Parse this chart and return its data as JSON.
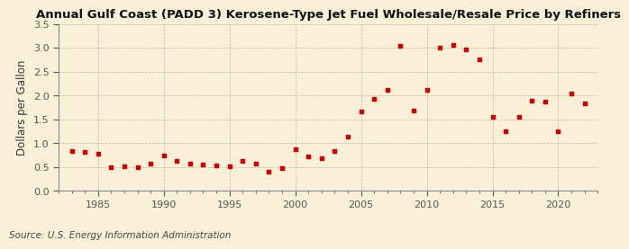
{
  "title": "Annual Gulf Coast (PADD 3) Kerosene-Type Jet Fuel Wholesale/Resale Price by Refiners",
  "ylabel": "Dollars per Gallon",
  "source": "Source: U.S. Energy Information Administration",
  "background_color": "#FAF0D7",
  "marker_color": "#CC0000",
  "years": [
    1983,
    1984,
    1985,
    1986,
    1987,
    1988,
    1989,
    1990,
    1991,
    1992,
    1993,
    1994,
    1995,
    1996,
    1997,
    1998,
    1999,
    2000,
    2001,
    2002,
    2003,
    2004,
    2005,
    2006,
    2007,
    2008,
    2009,
    2010,
    2011,
    2012,
    2013,
    2014,
    2015,
    2016,
    2017,
    2018,
    2019,
    2020,
    2021,
    2022
  ],
  "values": [
    0.84,
    0.81,
    0.77,
    0.49,
    0.52,
    0.5,
    0.57,
    0.75,
    0.62,
    0.58,
    0.55,
    0.53,
    0.51,
    0.62,
    0.57,
    0.4,
    0.47,
    0.87,
    0.72,
    0.69,
    0.83,
    1.13,
    1.67,
    1.93,
    2.12,
    3.04,
    1.69,
    2.12,
    3.0,
    3.07,
    2.96,
    2.75,
    1.55,
    1.25,
    1.55,
    1.9,
    1.88,
    1.25,
    2.04,
    1.84
  ],
  "xlim": [
    1982,
    2023
  ],
  "ylim": [
    0.0,
    3.5
  ],
  "yticks": [
    0.0,
    0.5,
    1.0,
    1.5,
    2.0,
    2.5,
    3.0,
    3.5
  ],
  "xticks": [
    1985,
    1990,
    1995,
    2000,
    2005,
    2010,
    2015,
    2020
  ],
  "grid_color": "#AAAAAA",
  "title_fontsize": 9.5,
  "label_fontsize": 8.5,
  "tick_fontsize": 8,
  "source_fontsize": 7.5
}
